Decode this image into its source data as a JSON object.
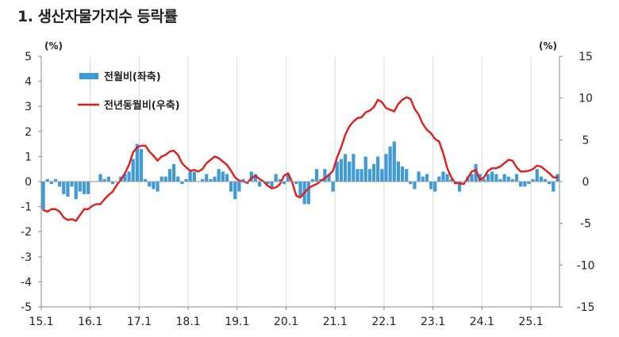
{
  "page_title": "1. 생산자물가지수 등락률",
  "chart_data": {
    "type": "bar+line",
    "title": "1. 생산자물가지수 등락률",
    "left_axis": {
      "unit": "(%)",
      "ylim": [
        -5,
        5
      ],
      "ticks": [
        5,
        4,
        3,
        2,
        1,
        0,
        -1,
        -2,
        -3,
        -4,
        -5
      ]
    },
    "right_axis": {
      "unit": "(%)",
      "ylim": [
        -15,
        15
      ],
      "ticks": [
        15,
        10,
        5,
        0,
        -5,
        -10,
        -15
      ]
    },
    "x_start": "2015-01",
    "x_tick_labels": [
      "15.1",
      "16.1",
      "17.1",
      "18.1",
      "19.1",
      "20.1",
      "21.1",
      "22.1",
      "23.1",
      "24.1",
      "25.1"
    ],
    "legend_position": "top-left",
    "series": [
      {
        "name": "전월비(좌축)",
        "type": "bar",
        "axis": "left",
        "color": "#3f9ad6",
        "values": [
          -1.1,
          0.1,
          -0.1,
          0.1,
          -0.2,
          -0.5,
          -0.6,
          -0.2,
          -0.7,
          -0.4,
          -0.5,
          -0.5,
          0.0,
          0.0,
          0.3,
          0.1,
          0.2,
          -0.1,
          0.0,
          0.2,
          0.3,
          0.4,
          0.9,
          1.5,
          1.3,
          0.1,
          -0.2,
          -0.3,
          -0.4,
          0.2,
          0.2,
          0.5,
          0.7,
          0.2,
          -0.1,
          0.1,
          0.4,
          0.4,
          0.0,
          0.1,
          0.3,
          0.1,
          0.2,
          0.5,
          0.4,
          0.3,
          -0.4,
          -0.7,
          -0.4,
          0.1,
          -0.1,
          0.4,
          0.3,
          -0.2,
          0.0,
          -0.1,
          -0.3,
          0.3,
          0.1,
          -0.1,
          0.3,
          0.0,
          -0.1,
          -0.6,
          -0.9,
          -0.9,
          0.1,
          0.5,
          0.1,
          0.5,
          0.3,
          -0.4,
          0.8,
          0.9,
          1.1,
          0.8,
          1.1,
          0.5,
          0.5,
          1.0,
          0.5,
          0.7,
          1.0,
          0.5,
          1.1,
          1.4,
          1.6,
          0.8,
          0.6,
          0.5,
          -0.1,
          -0.3,
          0.4,
          0.2,
          0.3,
          -0.3,
          -0.4,
          0.2,
          0.4,
          0.3,
          0.1,
          -0.1,
          -0.4,
          0.0,
          0.2,
          0.3,
          0.7,
          0.3,
          0.1,
          0.3,
          0.4,
          0.3,
          0.1,
          0.3,
          0.2,
          0.1,
          0.3,
          -0.2,
          -0.2,
          -0.1,
          0.1,
          0.5,
          0.2,
          0.1,
          -0.1,
          -0.4,
          0.3
        ]
      },
      {
        "name": "전년동월비(우축)",
        "type": "line",
        "axis": "right",
        "color": "#e31b1b",
        "values": [
          -3.4,
          -3.6,
          -3.3,
          -3.3,
          -3.6,
          -4.3,
          -4.6,
          -4.5,
          -4.7,
          -4.0,
          -3.3,
          -3.3,
          -2.9,
          -2.7,
          -2.7,
          -2.1,
          -1.6,
          -1.2,
          -0.4,
          0.2,
          1.0,
          2.0,
          3.5,
          4.1,
          4.3,
          4.3,
          3.6,
          3.1,
          2.5,
          3.0,
          3.2,
          3.6,
          3.7,
          3.2,
          2.2,
          1.7,
          1.3,
          1.4,
          1.2,
          1.5,
          2.2,
          2.6,
          3.0,
          2.8,
          2.4,
          2.0,
          1.3,
          0.5,
          0.1,
          0.0,
          -0.1,
          0.4,
          0.7,
          0.3,
          0.0,
          -0.5,
          -0.8,
          -0.7,
          -0.3,
          0.7,
          1.0,
          -0.1,
          -1.7,
          -1.9,
          -1.3,
          -0.8,
          -0.5,
          -0.3,
          0.1,
          0.4,
          0.8,
          1.3,
          2.9,
          4.1,
          5.6,
          6.6,
          7.2,
          7.6,
          7.7,
          8.3,
          8.5,
          8.9,
          9.8,
          9.5,
          8.8,
          8.6,
          8.4,
          9.3,
          9.8,
          10.1,
          9.9,
          8.7,
          8.0,
          6.9,
          6.2,
          5.8,
          5.1,
          4.8,
          3.4,
          1.6,
          0.5,
          -0.2,
          -0.2,
          -0.3,
          0.4,
          1.2,
          1.4,
          0.2,
          0.5,
          1.3,
          1.6,
          1.6,
          1.8,
          2.2,
          2.6,
          2.5,
          1.7,
          1.2,
          1.2,
          1.3,
          1.5,
          1.9,
          1.8,
          1.4,
          1.0,
          0.5,
          0.5
        ]
      }
    ]
  }
}
